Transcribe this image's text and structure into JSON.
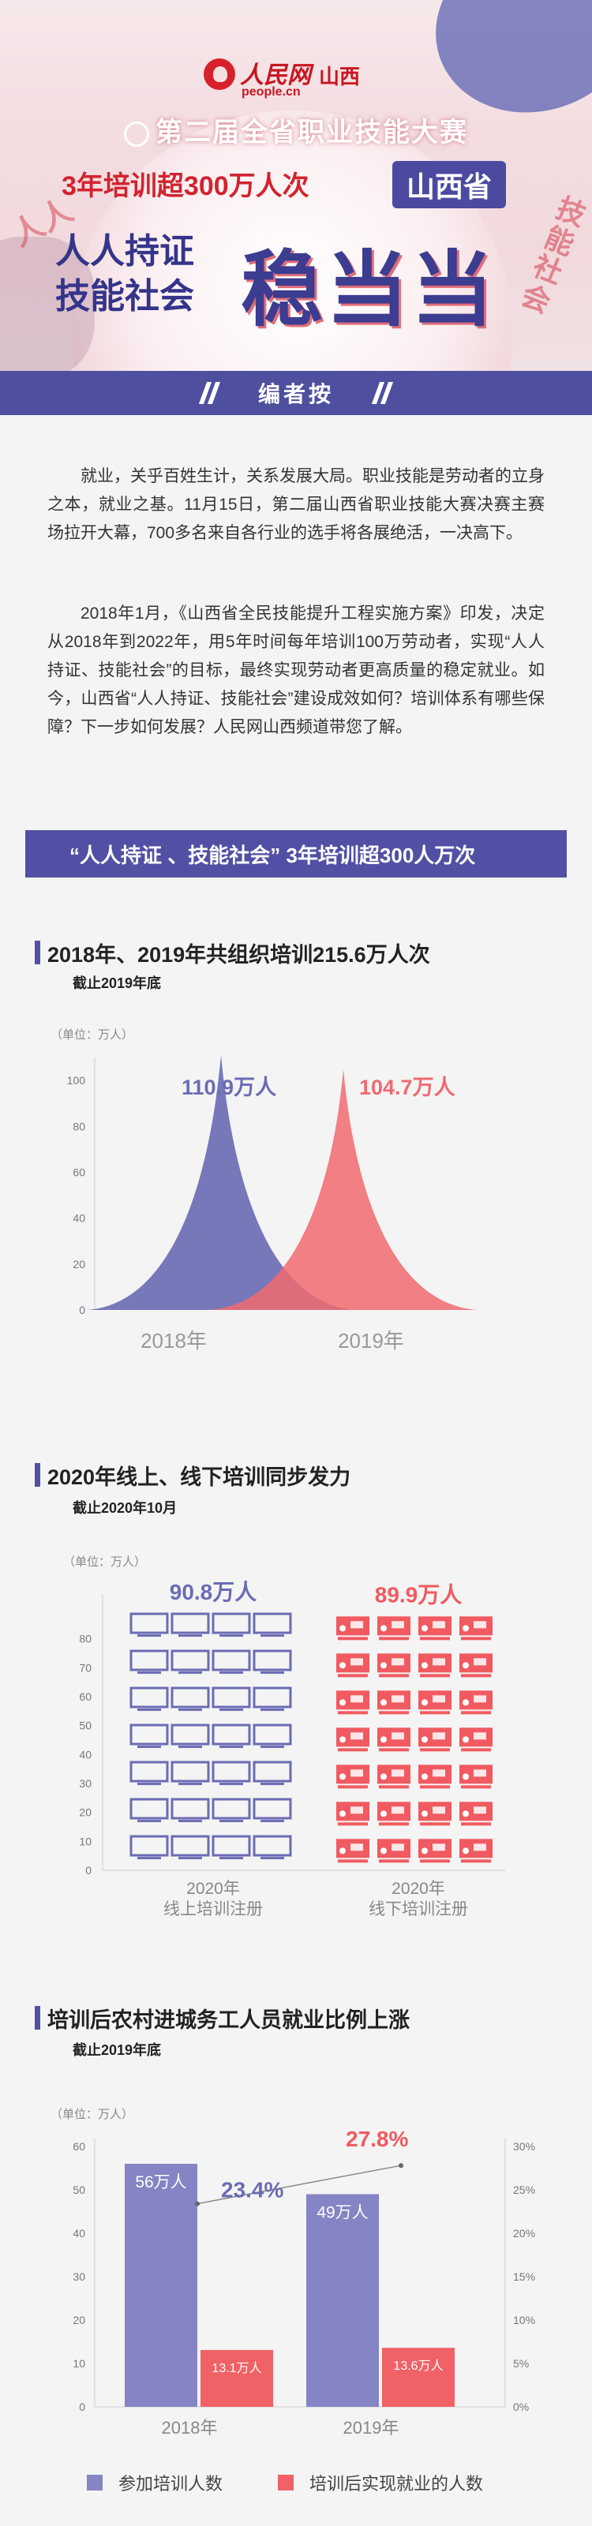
{
  "header": {
    "logo_brand": "人民网",
    "logo_region": "山西",
    "logo_url": "people.cn",
    "contest": "第二届全省职业技能大赛",
    "tagline": "3年培训超300万人次",
    "province": "山西省",
    "main_left_1": "人人持证",
    "main_left_2": "技能社会",
    "main_right": "稳当当",
    "side_left": "人人",
    "side_right": "技能社会"
  },
  "editor": {
    "label": "编者按",
    "paragraph_1": "就业，关乎百姓生计，关系发展大局。职业技能是劳动者的立身之本，就业之基。11月15日，第二届山西省职业技能大赛决赛主赛场拉开大幕，700多名来自各行业的选手将各展绝活，一决高下。",
    "paragraph_2": "2018年1月，《山西省全民技能提升工程实施方案》印发，决定从2018年到2022年，用5年时间每年培训100万劳动者，实现“人人持证、技能社会”的目标，最终实现劳动者更高质量的稳定就业。如今，山西省“人人持证、技能社会”建设成效如何？培训体系有哪些保障？下一步如何发展？人民网山西频道带您了解。"
  },
  "section": {
    "title": "“人人持证 、技能社会” 3年培训超300人万次"
  },
  "chart_data": [
    {
      "type": "area",
      "title": "2018年、2019年共组织培训215.6万人次",
      "subtitle": "截止2019年底",
      "unit": "（单位：万人）",
      "ylim": [
        0,
        110
      ],
      "yticks": [
        0,
        20,
        40,
        60,
        80,
        100
      ],
      "categories": [
        "2018年",
        "2019年"
      ],
      "values": [
        110.9,
        104.7
      ],
      "data_labels": [
        "110.9万人",
        "104.7万人"
      ],
      "colors": [
        "#6b6cb4",
        "#f06a6f"
      ]
    },
    {
      "type": "bar",
      "title": "2020年线上、线下培训同步发力",
      "subtitle": "截止2020年10月",
      "unit": "（单位：万人）",
      "ylim": [
        0,
        90
      ],
      "yticks": [
        0,
        10,
        20,
        30,
        40,
        50,
        60,
        70,
        80
      ],
      "categories": [
        "2020年\n线上培训注册",
        "2020年\n线下培训注册"
      ],
      "category_lines": [
        [
          "2020年",
          "线上培训注册"
        ],
        [
          "2020年",
          "线下培训注册"
        ]
      ],
      "values": [
        90.8,
        89.9
      ],
      "data_labels": [
        "90.8万人",
        "89.9万人"
      ],
      "colors": [
        "#6b6cb4",
        "#f05a60"
      ]
    },
    {
      "type": "bar",
      "title": "培训后农村进城务工人员就业比例上涨",
      "subtitle": "截止2019年底",
      "unit": "（单位：万人）",
      "ylim": [
        0,
        60
      ],
      "yticks": [
        0,
        10,
        20,
        30,
        40,
        50,
        60
      ],
      "y2lim": [
        0,
        30
      ],
      "y2ticks": [
        "0%",
        "5%",
        "10%",
        "15%",
        "20%",
        "25%",
        "30%"
      ],
      "categories": [
        "2018年",
        "2019年"
      ],
      "series": [
        {
          "name": "参加培训人数",
          "values": [
            56,
            49
          ],
          "data_labels": [
            "56万人",
            "49万人"
          ],
          "color": "#8584c4"
        },
        {
          "name": "培训后实现就业的人数",
          "values": [
            13.1,
            13.6
          ],
          "data_labels": [
            "13.1万人",
            "13.6万人"
          ],
          "color": "#f06266"
        }
      ],
      "ratio": {
        "values": [
          23.4,
          27.8
        ],
        "labels": [
          "23.4%",
          "27.8%"
        ],
        "colors": [
          "#6b6cb4",
          "#f05a60"
        ]
      }
    }
  ]
}
